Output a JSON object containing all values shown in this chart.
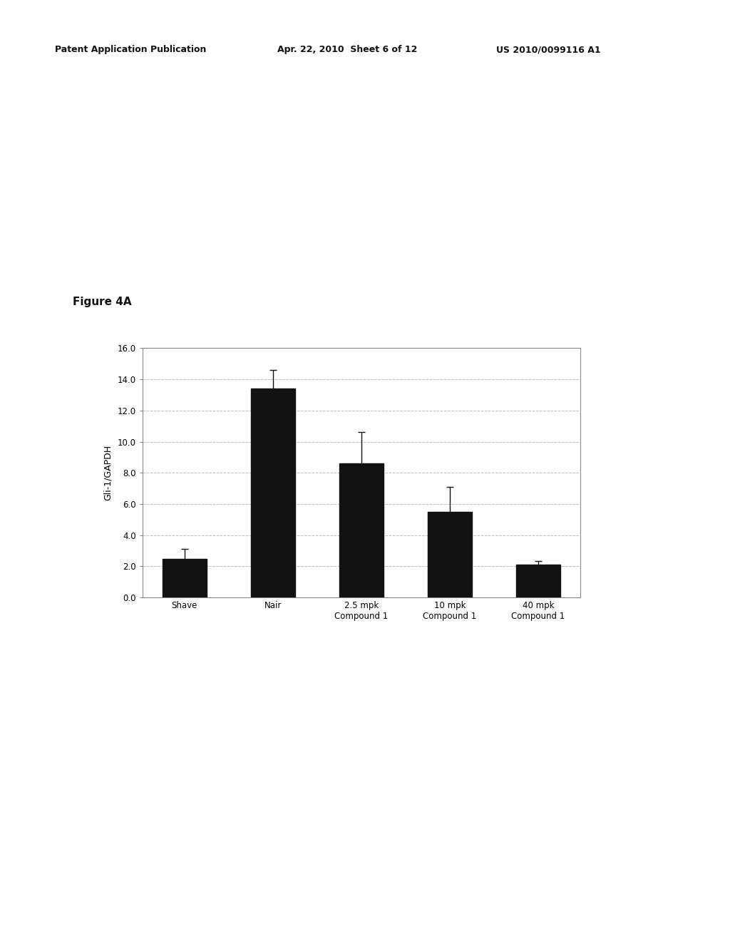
{
  "categories": [
    "Shave",
    "Nair",
    "2.5 mpk\nCompound 1",
    "10 mpk\nCompound 1",
    "40 mpk\nCompound 1"
  ],
  "values": [
    2.5,
    13.4,
    8.6,
    5.5,
    2.1
  ],
  "errors": [
    0.6,
    1.2,
    2.0,
    1.6,
    0.25
  ],
  "bar_color": "#111111",
  "ylabel": "Gli-1/GAPDH",
  "ylim": [
    0,
    16.0
  ],
  "yticks": [
    0.0,
    2.0,
    4.0,
    6.0,
    8.0,
    10.0,
    12.0,
    14.0,
    16.0
  ],
  "figure_label": "Figure 4A",
  "header_left": "Patent Application Publication",
  "header_mid": "Apr. 22, 2010  Sheet 6 of 12",
  "header_right": "US 2010/0099116 A1",
  "background_color": "#ffffff",
  "grid_color": "#bbbbbb",
  "axis_fontsize": 9,
  "tick_fontsize": 8.5,
  "bar_width": 0.5,
  "fig_label_fontsize": 11,
  "header_fontsize": 9
}
